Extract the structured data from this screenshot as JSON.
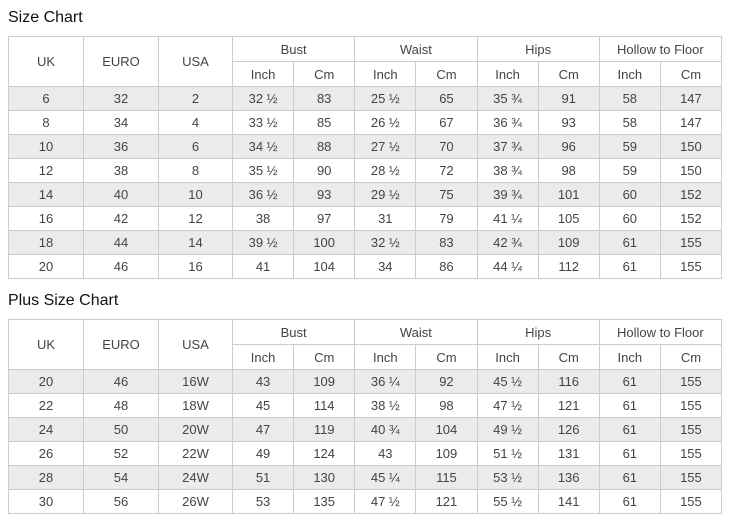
{
  "titles": {
    "size_chart": "Size Chart",
    "plus_size_chart": "Plus Size Chart"
  },
  "headers": {
    "uk": "UK",
    "euro": "EURO",
    "usa": "USA",
    "bust": "Bust",
    "waist": "Waist",
    "hips": "Hips",
    "hollow_to_floor": "Hollow to Floor",
    "inch": "Inch",
    "cm": "Cm"
  },
  "size_chart": {
    "rows": [
      [
        "6",
        "32",
        "2",
        "32 ½",
        "83",
        "25 ½",
        "65",
        "35 ¾",
        "91",
        "58",
        "147"
      ],
      [
        "8",
        "34",
        "4",
        "33 ½",
        "85",
        "26 ½",
        "67",
        "36 ¾",
        "93",
        "58",
        "147"
      ],
      [
        "10",
        "36",
        "6",
        "34 ½",
        "88",
        "27 ½",
        "70",
        "37 ¾",
        "96",
        "59",
        "150"
      ],
      [
        "12",
        "38",
        "8",
        "35 ½",
        "90",
        "28 ½",
        "72",
        "38 ¾",
        "98",
        "59",
        "150"
      ],
      [
        "14",
        "40",
        "10",
        "36 ½",
        "93",
        "29 ½",
        "75",
        "39 ¾",
        "101",
        "60",
        "152"
      ],
      [
        "16",
        "42",
        "12",
        "38",
        "97",
        "31",
        "79",
        "41 ¼",
        "105",
        "60",
        "152"
      ],
      [
        "18",
        "44",
        "14",
        "39 ½",
        "100",
        "32 ½",
        "83",
        "42 ¾",
        "109",
        "61",
        "155"
      ],
      [
        "20",
        "46",
        "16",
        "41",
        "104",
        "34",
        "86",
        "44 ¼",
        "112",
        "61",
        "155"
      ]
    ]
  },
  "plus_size_chart": {
    "rows": [
      [
        "20",
        "46",
        "16W",
        "43",
        "109",
        "36 ¼",
        "92",
        "45 ½",
        "116",
        "61",
        "155"
      ],
      [
        "22",
        "48",
        "18W",
        "45",
        "114",
        "38 ½",
        "98",
        "47 ½",
        "121",
        "61",
        "155"
      ],
      [
        "24",
        "50",
        "20W",
        "47",
        "119",
        "40 ¾",
        "104",
        "49 ½",
        "126",
        "61",
        "155"
      ],
      [
        "26",
        "52",
        "22W",
        "49",
        "124",
        "43",
        "109",
        "51 ½",
        "131",
        "61",
        "155"
      ],
      [
        "28",
        "54",
        "24W",
        "51",
        "130",
        "45 ¼",
        "115",
        "53 ½",
        "136",
        "61",
        "155"
      ],
      [
        "30",
        "56",
        "26W",
        "53",
        "135",
        "47 ½",
        "121",
        "55 ½",
        "141",
        "61",
        "155"
      ]
    ]
  },
  "colors": {
    "row_stripe": "#ebebeb",
    "border": "#cccccc",
    "text": "#444444",
    "title_text": "#111111",
    "background": "#ffffff"
  }
}
